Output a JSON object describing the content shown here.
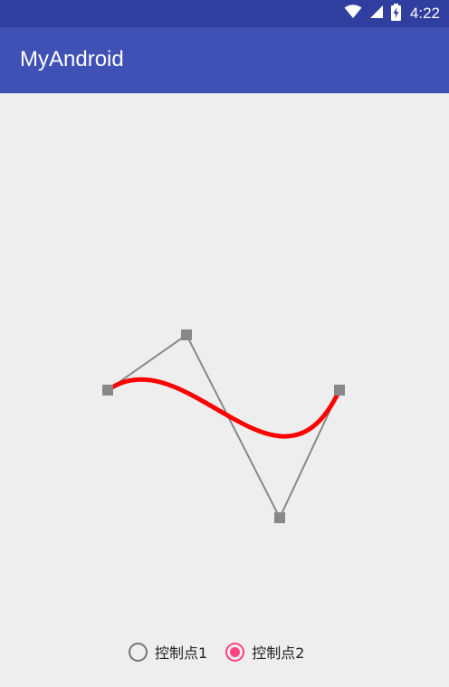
{
  "status_bar": {
    "time": "4:22",
    "icons": [
      "wifi-icon",
      "cell-signal-icon",
      "battery-charging-icon"
    ]
  },
  "app_bar": {
    "title": "MyAndroid"
  },
  "radio_group": {
    "options": [
      {
        "label": "控制点1",
        "checked": false
      },
      {
        "label": "控制点2",
        "checked": true
      }
    ]
  },
  "colors": {
    "status_bar": "#303f9f",
    "app_bar": "#3f51b5",
    "background": "#eeeeee",
    "curve": "#ff0000",
    "control_line": "#888888",
    "accent": "#ff4081"
  }
}
